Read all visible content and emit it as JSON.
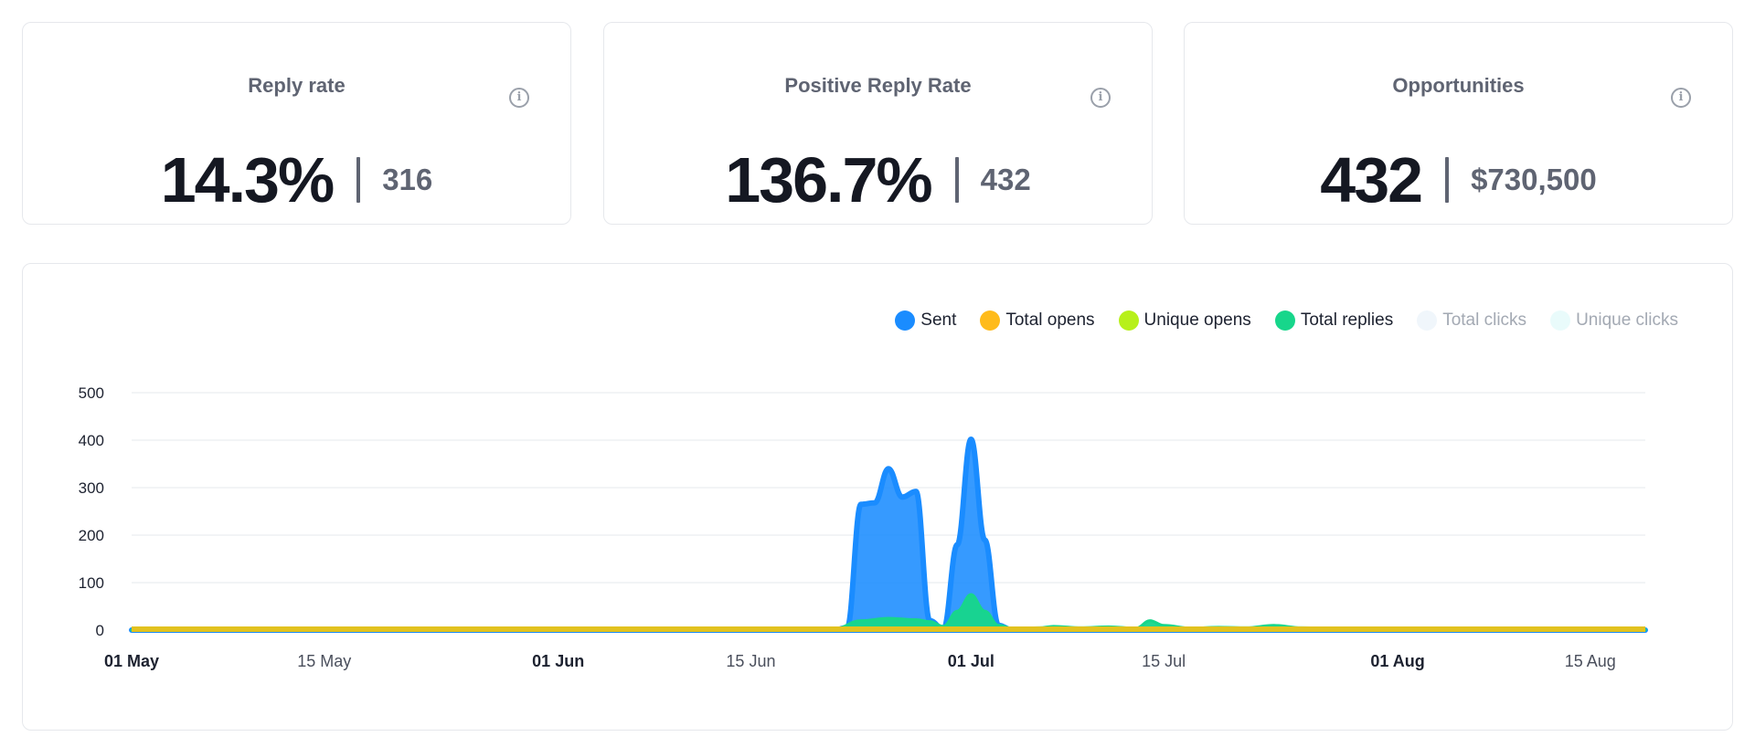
{
  "stats": [
    {
      "title": "Reply rate",
      "value": "14.3%",
      "sub": "316"
    },
    {
      "title": "Positive Reply Rate",
      "value": "136.7%",
      "sub": "432"
    },
    {
      "title": "Opportunities",
      "value": "432",
      "sub": "$730,500"
    }
  ],
  "chart_data": {
    "type": "area",
    "title": "",
    "xlabel": "",
    "ylabel": "",
    "ylim": [
      0,
      500
    ],
    "yticks": [
      0,
      100,
      200,
      300,
      400,
      500
    ],
    "xlim": [
      "2024-05-01",
      "2024-08-19"
    ],
    "xticks": [
      {
        "label": "01 May",
        "date": "2024-05-01",
        "major": true
      },
      {
        "label": "15 May",
        "date": "2024-05-15",
        "major": false
      },
      {
        "label": "01 Jun",
        "date": "2024-06-01",
        "major": true
      },
      {
        "label": "15 Jun",
        "date": "2024-06-15",
        "major": false
      },
      {
        "label": "01 Jul",
        "date": "2024-07-01",
        "major": true
      },
      {
        "label": "15 Jul",
        "date": "2024-07-15",
        "major": false
      },
      {
        "label": "01 Aug",
        "date": "2024-08-01",
        "major": true
      },
      {
        "label": "15 Aug",
        "date": "2024-08-15",
        "major": false
      }
    ],
    "grid": true,
    "legend_position": "top-right",
    "series": [
      {
        "name": "Sent",
        "color": "#1a8cff",
        "visible": true,
        "points": [
          [
            "2024-05-01",
            0
          ],
          [
            "2024-06-21",
            0
          ],
          [
            "2024-06-22",
            5
          ],
          [
            "2024-06-23",
            265
          ],
          [
            "2024-06-24",
            268
          ],
          [
            "2024-06-25",
            340
          ],
          [
            "2024-06-26",
            280
          ],
          [
            "2024-06-27",
            292
          ],
          [
            "2024-06-28",
            20
          ],
          [
            "2024-06-29",
            2
          ],
          [
            "2024-06-30",
            180
          ],
          [
            "2024-07-01",
            402
          ],
          [
            "2024-07-02",
            190
          ],
          [
            "2024-07-03",
            10
          ],
          [
            "2024-07-04",
            0
          ],
          [
            "2024-08-19",
            0
          ]
        ]
      },
      {
        "name": "Total opens",
        "color": "#ffbb1a",
        "visible": true,
        "points": [
          [
            "2024-05-01",
            0
          ],
          [
            "2024-08-19",
            0
          ]
        ]
      },
      {
        "name": "Unique opens",
        "color": "#b7f01a",
        "visible": true,
        "points": [
          [
            "2024-05-01",
            0
          ],
          [
            "2024-08-19",
            0
          ]
        ]
      },
      {
        "name": "Total replies",
        "color": "#17d68b",
        "visible": true,
        "points": [
          [
            "2024-05-01",
            0
          ],
          [
            "2024-06-19",
            0
          ],
          [
            "2024-06-21",
            2
          ],
          [
            "2024-06-23",
            20
          ],
          [
            "2024-06-25",
            25
          ],
          [
            "2024-06-27",
            22
          ],
          [
            "2024-06-28",
            18
          ],
          [
            "2024-06-29",
            8
          ],
          [
            "2024-06-30",
            40
          ],
          [
            "2024-07-01",
            75
          ],
          [
            "2024-07-02",
            40
          ],
          [
            "2024-07-03",
            10
          ],
          [
            "2024-07-04",
            4
          ],
          [
            "2024-07-06",
            5
          ],
          [
            "2024-07-07",
            8
          ],
          [
            "2024-07-09",
            5
          ],
          [
            "2024-07-11",
            7
          ],
          [
            "2024-07-13",
            4
          ],
          [
            "2024-07-14",
            20
          ],
          [
            "2024-07-15",
            10
          ],
          [
            "2024-07-17",
            4
          ],
          [
            "2024-07-19",
            6
          ],
          [
            "2024-07-21",
            5
          ],
          [
            "2024-07-23",
            10
          ],
          [
            "2024-07-25",
            5
          ],
          [
            "2024-07-28",
            3
          ],
          [
            "2024-08-02",
            2
          ],
          [
            "2024-08-05",
            3
          ],
          [
            "2024-08-10",
            1
          ],
          [
            "2024-08-19",
            1
          ]
        ]
      },
      {
        "name": "Total clicks",
        "color": "#f0f6fb",
        "visible": false,
        "points": [
          [
            "2024-05-01",
            0
          ],
          [
            "2024-08-19",
            0
          ]
        ]
      },
      {
        "name": "Unique clicks",
        "color": "#e9fbfb",
        "visible": false,
        "points": [
          [
            "2024-05-01",
            0
          ],
          [
            "2024-08-19",
            0
          ]
        ]
      }
    ]
  }
}
